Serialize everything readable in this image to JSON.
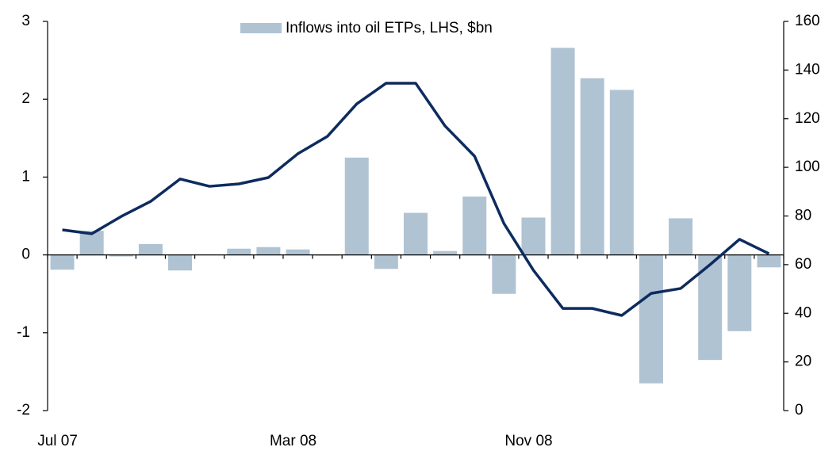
{
  "chart_data": {
    "type": "bar-line",
    "categories": [
      "Jul 07",
      null,
      null,
      null,
      null,
      null,
      null,
      null,
      "Mar 08",
      null,
      null,
      null,
      null,
      null,
      null,
      null,
      "Nov 08",
      null,
      null,
      null,
      null,
      null,
      null,
      null,
      null
    ],
    "series": [
      {
        "name": "Inflows into oil ETPs, LHS, $bn",
        "type": "bar",
        "color": "#b0c3d3",
        "values": [
          -0.19,
          0.31,
          -0.02,
          0.14,
          -0.2,
          0,
          0.08,
          0.1,
          0.07,
          -0.01,
          1.25,
          -0.18,
          0.54,
          0.05,
          0.75,
          -0.5,
          0.48,
          2.66,
          2.27,
          2.12,
          -1.65,
          0.47,
          -1.35,
          -0.98,
          -0.16
        ]
      },
      {
        "type": "line",
        "axis": "y2",
        "color": "#0d2b5e",
        "values": [
          74.3,
          72.7,
          79.8,
          86,
          95.2,
          92.2,
          93.2,
          95.8,
          105.6,
          112.7,
          126.1,
          134.6,
          134.6,
          117,
          104.6,
          76.9,
          57.7,
          42,
          42,
          39.1,
          48.2,
          50.2,
          60,
          70.4,
          64.5
        ]
      }
    ],
    "ylim": [
      -2,
      3
    ],
    "yticks": [
      -2,
      -1,
      0,
      1,
      2,
      3
    ],
    "y2lim": [
      0,
      160
    ],
    "y2ticks": [
      0,
      20,
      40,
      60,
      80,
      100,
      120,
      140,
      160
    ]
  }
}
